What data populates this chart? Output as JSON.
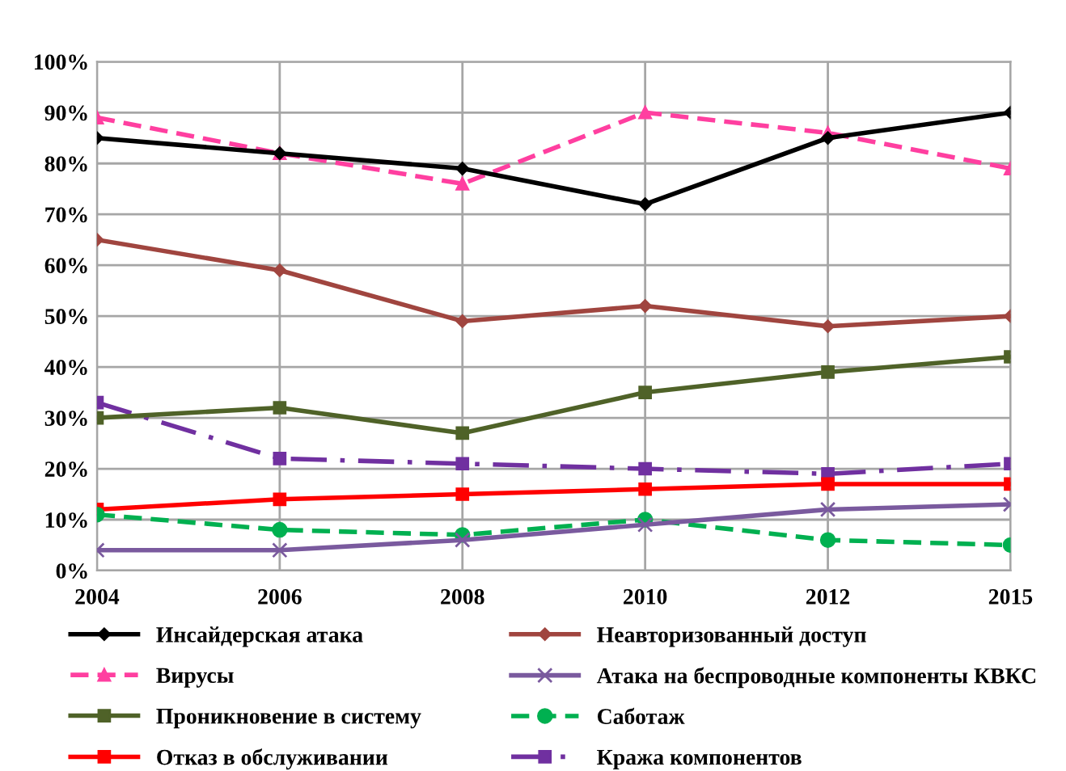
{
  "chart_data": {
    "type": "line",
    "categories": [
      "2004",
      "2006",
      "2008",
      "2010",
      "2012",
      "2015"
    ],
    "ylim": [
      0,
      100
    ],
    "yticks": [
      {
        "value": 0,
        "label": "0%"
      },
      {
        "value": 10,
        "label": "10%"
      },
      {
        "value": 20,
        "label": "20%"
      },
      {
        "value": 30,
        "label": "30%"
      },
      {
        "value": 40,
        "label": "40%"
      },
      {
        "value": 50,
        "label": "50%"
      },
      {
        "value": 60,
        "label": "60%"
      },
      {
        "value": 70,
        "label": "70%"
      },
      {
        "value": 80,
        "label": "80%"
      },
      {
        "value": 90,
        "label": "90%"
      },
      {
        "value": 100,
        "label": "100%"
      }
    ],
    "grid": true,
    "legend": "bottom",
    "series": [
      {
        "name": "Инсайдерская атака",
        "color": "#000000",
        "marker": "diamond",
        "line_style": "solid",
        "values": [
          85,
          82,
          79,
          72,
          85,
          90
        ]
      },
      {
        "name": "Неавторизованный доступ",
        "color": "#a0453f",
        "marker": "diamond",
        "line_style": "solid",
        "values": [
          65,
          59,
          49,
          52,
          48,
          50
        ]
      },
      {
        "name": "Вирусы",
        "color": "#ff3fa0",
        "marker": "triangle",
        "line_style": "dashed",
        "values": [
          89,
          82,
          76,
          90,
          86,
          79
        ]
      },
      {
        "name": "Атака на беспроводные компоненты КВКС",
        "color": "#7a5a9e",
        "marker": "cross",
        "line_style": "solid",
        "values": [
          4,
          4,
          6,
          9,
          12,
          13
        ]
      },
      {
        "name": "Проникновение в систему",
        "color": "#4f6228",
        "marker": "square",
        "line_style": "solid",
        "values": [
          30,
          32,
          27,
          35,
          39,
          42
        ]
      },
      {
        "name": "Саботаж",
        "color": "#00b050",
        "marker": "circle",
        "line_style": "dashed",
        "values": [
          11,
          8,
          7,
          10,
          6,
          5
        ]
      },
      {
        "name": "Отказ в обслуживании",
        "color": "#ff0000",
        "marker": "square",
        "line_style": "solid",
        "values": [
          12,
          14,
          15,
          16,
          17,
          17
        ]
      },
      {
        "name": "Кража компонентов",
        "color": "#7030a0",
        "marker": "square",
        "line_style": "dashdot",
        "values": [
          33,
          22,
          21,
          20,
          19,
          21
        ]
      }
    ]
  }
}
